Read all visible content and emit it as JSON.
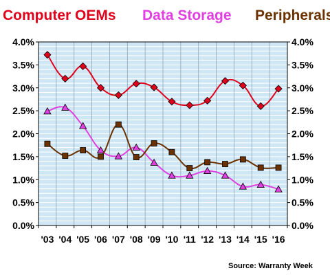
{
  "chart_data": {
    "type": "line",
    "title": "",
    "xlabel": "",
    "ylabel": "",
    "categories": [
      "'03",
      "'04",
      "'05",
      "'06",
      "'07",
      "'08",
      "'09",
      "'10",
      "'11",
      "'12",
      "'13",
      "'14",
      "'15",
      "'16"
    ],
    "ylim": [
      0,
      4.0
    ],
    "y_ticks": [
      "0.0%",
      "0.5%",
      "1.0%",
      "1.5%",
      "2.0%",
      "2.5%",
      "3.0%",
      "3.5%",
      "4.0%"
    ],
    "y_axes": "left and right",
    "grid": true,
    "legend": "top",
    "source": "Source: Warranty Week",
    "series": [
      {
        "name": "Computer OEMs",
        "color": "#e0001b",
        "marker": "diamond",
        "values": [
          3.72,
          3.2,
          3.47,
          3.0,
          2.84,
          3.09,
          3.01,
          2.7,
          2.62,
          2.72,
          3.15,
          3.05,
          2.6,
          2.98
        ]
      },
      {
        "name": "Data Storage",
        "color": "#e040e0",
        "marker": "triangle",
        "values": [
          2.49,
          2.57,
          2.17,
          1.64,
          1.51,
          1.7,
          1.37,
          1.09,
          1.09,
          1.19,
          1.09,
          0.85,
          0.89,
          0.79
        ]
      },
      {
        "name": "Peripherals",
        "color": "#6b3200",
        "marker": "square",
        "values": [
          1.78,
          1.52,
          1.64,
          1.5,
          2.2,
          1.49,
          1.79,
          1.6,
          1.25,
          1.38,
          1.34,
          1.44,
          1.26,
          1.26
        ]
      }
    ]
  }
}
